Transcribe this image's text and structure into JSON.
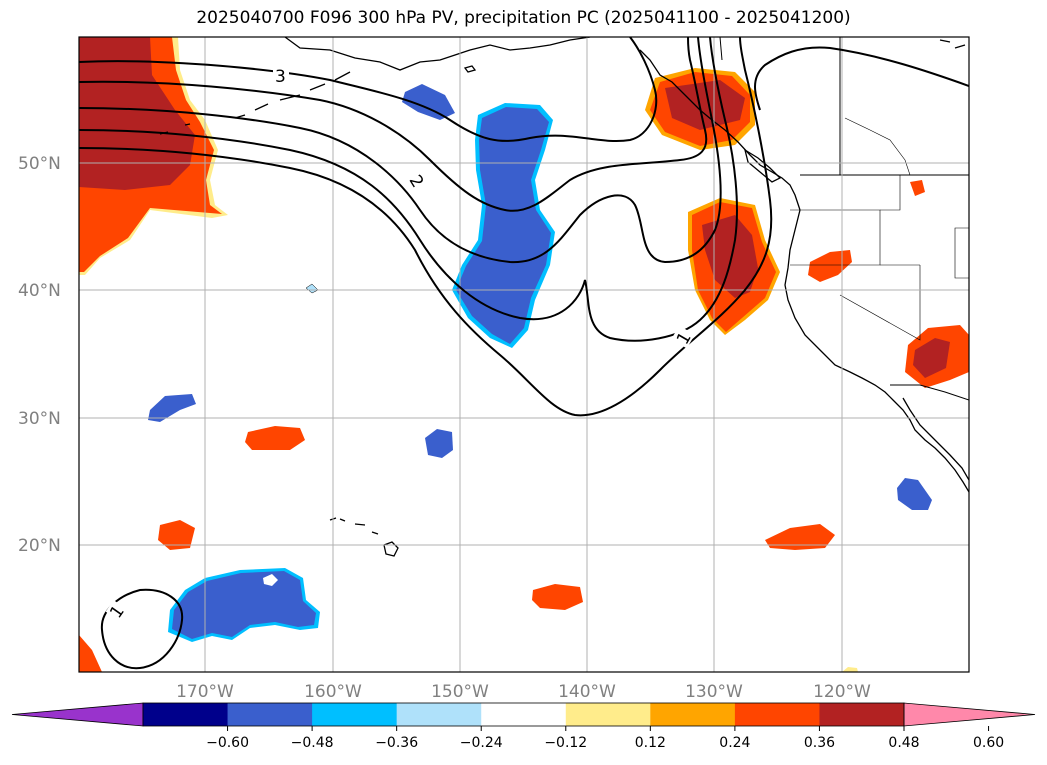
{
  "title": "2025040700 F096 300 hPa PV, precipitation PC (2025041100 - 2025041200)",
  "map": {
    "lat_ticks": [
      {
        "lat": 50,
        "label": "50°N"
      },
      {
        "lat": 40,
        "label": "40°N"
      },
      {
        "lat": 30,
        "label": "30°N"
      },
      {
        "lat": 20,
        "label": "20°N"
      }
    ],
    "lon_ticks": [
      {
        "lon": -170,
        "label": "170°W"
      },
      {
        "lon": -160,
        "label": "160°W"
      },
      {
        "lon": -150,
        "label": "150°W"
      },
      {
        "lon": -140,
        "label": "140°W"
      },
      {
        "lon": -130,
        "label": "130°W"
      },
      {
        "lon": -120,
        "label": "120°W"
      }
    ],
    "lon_range": [
      -180,
      -110
    ],
    "lat_range": [
      10,
      60
    ],
    "grid": true,
    "pv_contours": [
      1,
      2,
      3
    ],
    "pv_contour_labels": [
      "3",
      "2",
      "1",
      "1"
    ]
  },
  "colorbar": {
    "levels": [
      "−0.60",
      "−0.48",
      "−0.36",
      "−0.24",
      "−0.12",
      "0.12",
      "0.24",
      "0.36",
      "0.48",
      "0.60"
    ],
    "colors": [
      "#9933cc",
      "#00008b",
      "#3a5fcd",
      "#00bfff",
      "#afe1fa",
      "#ffffff",
      "#ffec8b",
      "#ffa500",
      "#ff4500",
      "#b22222",
      "#ff88aa"
    ],
    "extend": "both"
  }
}
